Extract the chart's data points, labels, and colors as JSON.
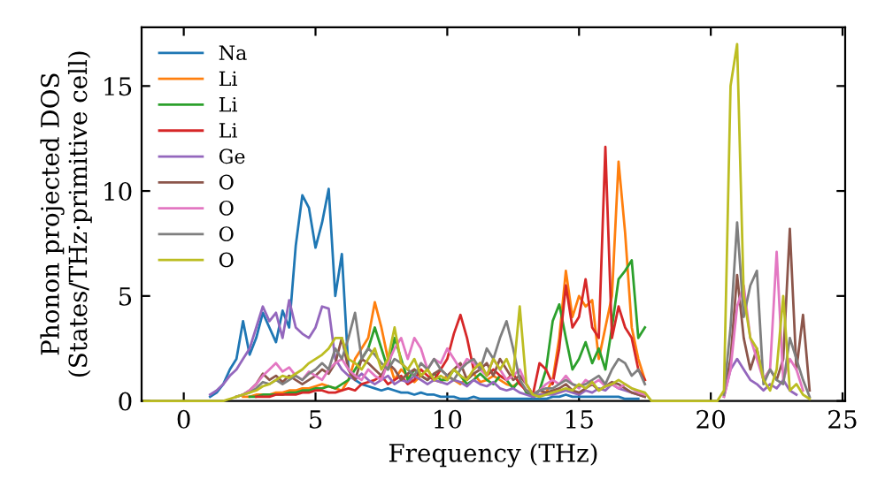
{
  "chart_data": {
    "type": "line",
    "xlabel": "Frequency (THz)",
    "ylabel": "Phonon projected DOS\n(States/THz·primitive cell)",
    "x": [
      -1.5,
      -1.25,
      -1,
      -0.75,
      -0.5,
      -0.25,
      0,
      0.25,
      0.5,
      0.75,
      1,
      1.25,
      1.5,
      1.75,
      2,
      2.25,
      2.5,
      2.75,
      3,
      3.25,
      3.5,
      3.75,
      4,
      4.25,
      4.5,
      4.75,
      5,
      5.25,
      5.5,
      5.75,
      6,
      6.25,
      6.5,
      6.75,
      7,
      7.25,
      7.5,
      7.75,
      8,
      8.25,
      8.5,
      8.75,
      9,
      9.25,
      9.5,
      9.75,
      10,
      10.25,
      10.5,
      10.75,
      11,
      11.25,
      11.5,
      11.75,
      12,
      12.25,
      12.5,
      12.75,
      13,
      13.25,
      13.5,
      13.75,
      14,
      14.25,
      14.5,
      14.75,
      15,
      15.25,
      15.5,
      15.75,
      16,
      16.25,
      16.5,
      16.75,
      17,
      17.25,
      17.5,
      17.75,
      18,
      18.25,
      18.5,
      18.75,
      19,
      19.25,
      19.5,
      19.75,
      20,
      20.25,
      20.5,
      20.75,
      21,
      21.25,
      21.5,
      21.75,
      22,
      22.25,
      22.5,
      22.75,
      23,
      23.25,
      23.5,
      23.75
    ],
    "xlim": [
      -1.6,
      25.1
    ],
    "ylim": [
      0,
      17.8
    ],
    "xticks": [
      0,
      5,
      10,
      15,
      20,
      25
    ],
    "yticks": [
      0,
      5,
      10,
      15
    ],
    "grid": false,
    "legend": "top left",
    "marker": "none",
    "line_style": "solid",
    "series": [
      {
        "name": "Na",
        "color": "#1f77b4",
        "values": [
          null,
          null,
          null,
          null,
          null,
          null,
          null,
          null,
          null,
          null,
          0.2,
          0.4,
          0.8,
          1.5,
          2.0,
          3.8,
          2.2,
          3.0,
          4.2,
          3.5,
          2.8,
          4.3,
          3.5,
          7.4,
          9.8,
          9.2,
          7.3,
          8.5,
          10.1,
          5.0,
          7.0,
          1.5,
          1.0,
          0.8,
          0.7,
          0.6,
          0.5,
          0.6,
          0.5,
          0.4,
          0.4,
          0.3,
          0.4,
          0.3,
          0.3,
          0.2,
          0.2,
          0.2,
          0.1,
          0.1,
          0.2,
          0.1,
          0.1,
          0.1,
          0.1,
          0.1,
          0.1,
          0.1,
          0.1,
          0.1,
          0.1,
          0.1,
          0.2,
          0.2,
          0.3,
          0.2,
          0.2,
          0.2,
          0.2,
          0.2,
          0.2,
          0.2,
          0.2,
          0.1,
          0.1,
          0.1,
          null,
          null,
          null,
          null,
          null,
          null,
          null,
          null,
          null,
          null,
          null,
          null,
          null,
          null,
          null,
          null,
          null,
          null,
          null,
          null,
          null,
          null,
          null,
          null,
          null,
          null
        ]
      },
      {
        "name": "Li",
        "color": "#ff7f0e",
        "values": [
          null,
          null,
          null,
          null,
          null,
          null,
          null,
          null,
          null,
          null,
          null,
          null,
          null,
          null,
          null,
          0.2,
          0.2,
          0.3,
          0.3,
          0.3,
          0.4,
          0.4,
          0.5,
          0.5,
          0.6,
          0.6,
          0.7,
          0.8,
          0.7,
          0.6,
          0.5,
          1.0,
          2.0,
          2.5,
          3.0,
          4.7,
          3.5,
          2.0,
          1.0,
          1.5,
          1.2,
          0.9,
          1.2,
          1.5,
          1.0,
          0.9,
          1.2,
          1.0,
          0.8,
          1.1,
          1.3,
          0.9,
          1.0,
          1.2,
          1.0,
          0.8,
          0.7,
          0.9,
          0.5,
          0.2,
          0.3,
          0.4,
          1.0,
          3.0,
          6.2,
          4.0,
          5.0,
          4.5,
          4.8,
          2.0,
          3.5,
          5.0,
          11.4,
          8.0,
          3.5,
          2.0,
          1.0,
          null,
          null,
          null,
          null,
          null,
          null,
          null,
          null,
          null,
          null,
          null,
          null,
          null,
          null,
          null,
          null,
          null,
          null,
          null,
          null,
          null,
          null,
          null,
          null,
          null
        ]
      },
      {
        "name": "Li",
        "color": "#2ca02c",
        "values": [
          null,
          null,
          null,
          null,
          null,
          null,
          null,
          null,
          null,
          null,
          null,
          null,
          null,
          null,
          null,
          null,
          0.2,
          0.2,
          0.3,
          0.3,
          0.3,
          0.3,
          0.4,
          0.4,
          0.5,
          0.5,
          0.6,
          0.6,
          0.7,
          0.6,
          0.8,
          1.0,
          1.5,
          2.0,
          2.5,
          3.5,
          2.5,
          1.5,
          3.0,
          2.0,
          1.0,
          1.5,
          1.2,
          1.0,
          1.3,
          1.0,
          1.0,
          1.5,
          1.2,
          0.8,
          1.0,
          1.3,
          1.0,
          0.8,
          1.2,
          1.0,
          0.6,
          1.0,
          0.4,
          0.2,
          0.5,
          1.5,
          3.8,
          4.6,
          3.0,
          1.5,
          2.0,
          2.8,
          1.8,
          2.5,
          1.5,
          3.5,
          5.8,
          6.2,
          6.7,
          3.0,
          3.5,
          null,
          null,
          null,
          null,
          null,
          null,
          null,
          null,
          null,
          null,
          null,
          null,
          null,
          null,
          null,
          null,
          null,
          null,
          null,
          null,
          null,
          null,
          null,
          null,
          null
        ]
      },
      {
        "name": "Li",
        "color": "#d62728",
        "values": [
          null,
          null,
          null,
          null,
          null,
          null,
          null,
          null,
          null,
          null,
          null,
          null,
          null,
          null,
          null,
          null,
          null,
          0.2,
          0.2,
          0.2,
          0.3,
          0.3,
          0.3,
          0.3,
          0.4,
          0.4,
          0.5,
          0.5,
          0.4,
          0.4,
          0.5,
          0.6,
          0.5,
          0.8,
          0.9,
          1.0,
          1.2,
          0.8,
          1.0,
          1.2,
          0.8,
          1.0,
          1.5,
          1.2,
          1.0,
          1.5,
          2.0,
          3.2,
          4.1,
          3.0,
          1.5,
          1.8,
          1.2,
          1.5,
          1.2,
          1.0,
          1.3,
          0.8,
          0.5,
          0.3,
          1.8,
          1.5,
          0.8,
          2.5,
          5.5,
          3.5,
          4.0,
          5.8,
          3.5,
          3.0,
          12.1,
          3.0,
          4.5,
          3.5,
          3.0,
          1.5,
          1.0,
          null,
          null,
          null,
          null,
          null,
          null,
          null,
          null,
          null,
          null,
          null,
          null,
          null,
          null,
          null,
          null,
          null,
          null,
          null,
          null,
          null,
          null,
          null,
          null,
          null
        ]
      },
      {
        "name": "Ge",
        "color": "#9467bd",
        "values": [
          null,
          null,
          null,
          null,
          null,
          null,
          null,
          null,
          null,
          null,
          0.3,
          0.5,
          0.8,
          1.2,
          1.5,
          2.0,
          2.5,
          3.5,
          4.5,
          3.8,
          4.2,
          3.0,
          4.8,
          3.5,
          3.2,
          3.0,
          3.5,
          4.5,
          4.4,
          2.0,
          1.5,
          1.2,
          1.0,
          1.3,
          1.0,
          0.8,
          1.0,
          1.2,
          0.8,
          1.0,
          0.9,
          1.2,
          1.0,
          0.8,
          1.0,
          0.9,
          0.8,
          1.0,
          0.9,
          0.7,
          1.0,
          0.8,
          0.7,
          0.9,
          0.6,
          0.5,
          0.6,
          0.4,
          0.3,
          0.2,
          0.3,
          0.3,
          0.3,
          0.4,
          0.5,
          0.4,
          0.3,
          0.5,
          0.4,
          0.6,
          0.5,
          0.8,
          0.6,
          0.5,
          0.4,
          0.3,
          0.2,
          null,
          null,
          null,
          null,
          null,
          null,
          null,
          null,
          null,
          null,
          null,
          0.2,
          1.5,
          2.0,
          1.5,
          1.0,
          0.8,
          0.5,
          0.8,
          0.6,
          1.0,
          0.5,
          0.3,
          null,
          null
        ]
      },
      {
        "name": "O",
        "color": "#8c564b",
        "values": [
          null,
          null,
          null,
          null,
          null,
          null,
          null,
          null,
          null,
          null,
          null,
          null,
          null,
          null,
          0.2,
          0.3,
          0.5,
          0.8,
          1.3,
          1.0,
          1.2,
          0.9,
          1.2,
          1.0,
          0.8,
          1.0,
          1.2,
          1.5,
          1.3,
          1.8,
          3.0,
          1.5,
          1.0,
          2.0,
          1.8,
          1.5,
          1.2,
          1.8,
          1.5,
          1.0,
          1.3,
          1.5,
          1.2,
          1.0,
          1.3,
          1.5,
          1.2,
          1.5,
          1.8,
          1.0,
          1.3,
          1.5,
          1.8,
          1.2,
          2.0,
          1.5,
          1.0,
          1.2,
          0.8,
          0.3,
          0.5,
          0.4,
          0.5,
          0.6,
          0.8,
          0.5,
          0.4,
          0.6,
          0.8,
          0.5,
          0.7,
          0.9,
          0.8,
          0.6,
          0.4,
          0.3,
          0.2,
          null,
          null,
          null,
          null,
          null,
          null,
          null,
          null,
          null,
          null,
          null,
          0.3,
          2.0,
          6.0,
          3.0,
          1.5,
          2.5,
          1.0,
          1.5,
          1.0,
          2.0,
          8.2,
          1.5,
          4.1,
          0.5
        ]
      },
      {
        "name": "O",
        "color": "#e377c2",
        "values": [
          null,
          null,
          null,
          null,
          null,
          null,
          null,
          null,
          null,
          null,
          null,
          null,
          null,
          null,
          0.2,
          0.3,
          0.5,
          0.8,
          1.2,
          1.5,
          1.8,
          1.4,
          1.6,
          1.2,
          1.0,
          1.4,
          1.2,
          1.0,
          1.5,
          1.8,
          2.0,
          1.5,
          1.2,
          1.0,
          1.5,
          1.2,
          1.0,
          1.8,
          2.5,
          3.0,
          2.0,
          3.0,
          2.5,
          1.5,
          2.0,
          1.8,
          2.5,
          2.0,
          1.5,
          2.0,
          1.8,
          1.5,
          1.2,
          2.0,
          1.5,
          1.0,
          1.2,
          1.5,
          0.8,
          0.3,
          0.5,
          0.8,
          1.0,
          0.8,
          1.2,
          0.8,
          0.6,
          1.0,
          0.8,
          1.0,
          0.7,
          0.8,
          0.6,
          0.8,
          0.6,
          0.4,
          0.3,
          null,
          null,
          null,
          null,
          null,
          null,
          null,
          null,
          null,
          null,
          null,
          0.2,
          1.5,
          4.5,
          5.5,
          3.0,
          2.0,
          1.0,
          1.5,
          7.1,
          1.0,
          2.0,
          1.5,
          0.5,
          null
        ]
      },
      {
        "name": "O",
        "color": "#7f7f7f",
        "values": [
          null,
          null,
          null,
          null,
          null,
          null,
          null,
          null,
          null,
          null,
          null,
          null,
          null,
          null,
          0.2,
          0.3,
          0.4,
          0.6,
          0.9,
          0.8,
          1.0,
          0.8,
          1.0,
          1.2,
          1.0,
          1.3,
          1.5,
          1.8,
          1.5,
          2.5,
          2.0,
          3.0,
          4.2,
          2.0,
          2.5,
          2.2,
          1.8,
          1.5,
          2.0,
          1.8,
          1.5,
          1.2,
          1.8,
          1.5,
          2.0,
          1.5,
          1.2,
          1.0,
          1.5,
          1.8,
          2.0,
          1.5,
          2.5,
          2.0,
          3.0,
          3.8,
          2.5,
          1.0,
          0.5,
          0.3,
          0.5,
          0.6,
          0.6,
          0.8,
          1.0,
          0.8,
          0.7,
          0.8,
          1.0,
          1.2,
          0.8,
          1.5,
          2.0,
          1.8,
          1.2,
          1.5,
          0.8,
          null,
          null,
          null,
          null,
          null,
          null,
          null,
          null,
          null,
          null,
          null,
          0.3,
          3.5,
          8.5,
          4.0,
          5.5,
          6.2,
          0.8,
          1.5,
          1.0,
          0.8,
          3.0,
          2.0,
          1.0,
          0.2
        ]
      },
      {
        "name": "O",
        "color": "#bcbd22",
        "values": [
          0,
          0,
          0,
          0,
          0,
          0,
          0,
          0,
          0,
          0,
          0,
          0,
          0,
          0.1,
          0.2,
          0.3,
          0.4,
          0.5,
          0.7,
          0.8,
          1.0,
          1.2,
          1.1,
          1.3,
          1.5,
          1.8,
          2.0,
          2.2,
          2.5,
          3.0,
          3.0,
          2.0,
          1.8,
          1.5,
          2.0,
          2.5,
          1.5,
          2.0,
          3.5,
          1.8,
          1.5,
          2.0,
          1.2,
          1.5,
          1.0,
          1.2,
          1.0,
          1.5,
          1.2,
          1.0,
          1.5,
          1.8,
          1.2,
          2.0,
          1.5,
          2.0,
          1.2,
          4.5,
          0.8,
          0.3,
          0.2,
          0.3,
          0.4,
          0.5,
          0.6,
          0.5,
          0.8,
          0.6,
          0.9,
          0.5,
          0.7,
          0.8,
          1.0,
          0.8,
          0.6,
          0.5,
          0.4,
          0,
          0,
          0,
          0,
          0,
          0,
          0,
          0,
          0,
          0,
          0,
          0.5,
          15.0,
          17.0,
          5.0,
          3.0,
          2.5,
          1.0,
          0.5,
          1.5,
          5.0,
          0.5,
          0.8,
          0.3,
          0.1
        ]
      }
    ]
  }
}
